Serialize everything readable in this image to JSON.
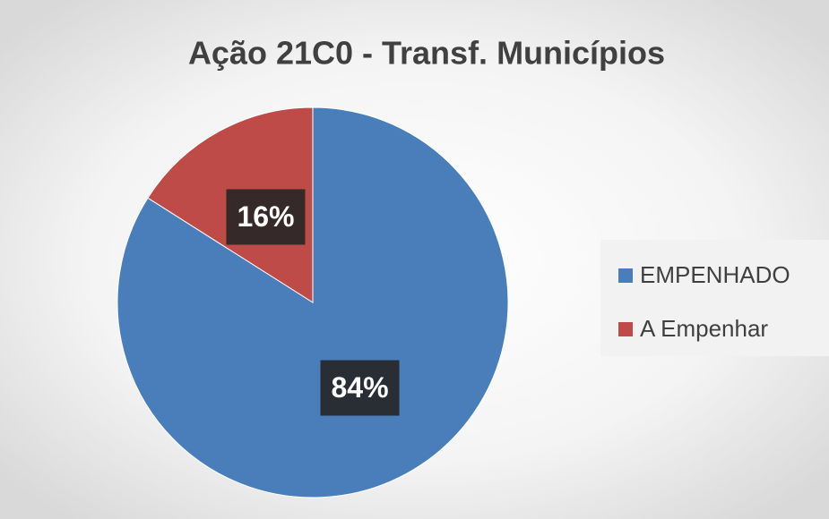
{
  "chart_data": {
    "type": "pie",
    "title": "Ação 21C0 - Transf. Municípios",
    "categories": [
      "EMPENHADO",
      "A Empenhar"
    ],
    "values": [
      84,
      16
    ],
    "value_labels": [
      "84%",
      "16%"
    ],
    "colors": [
      "#4a7ebb",
      "#be4b48"
    ],
    "legend": "right"
  }
}
